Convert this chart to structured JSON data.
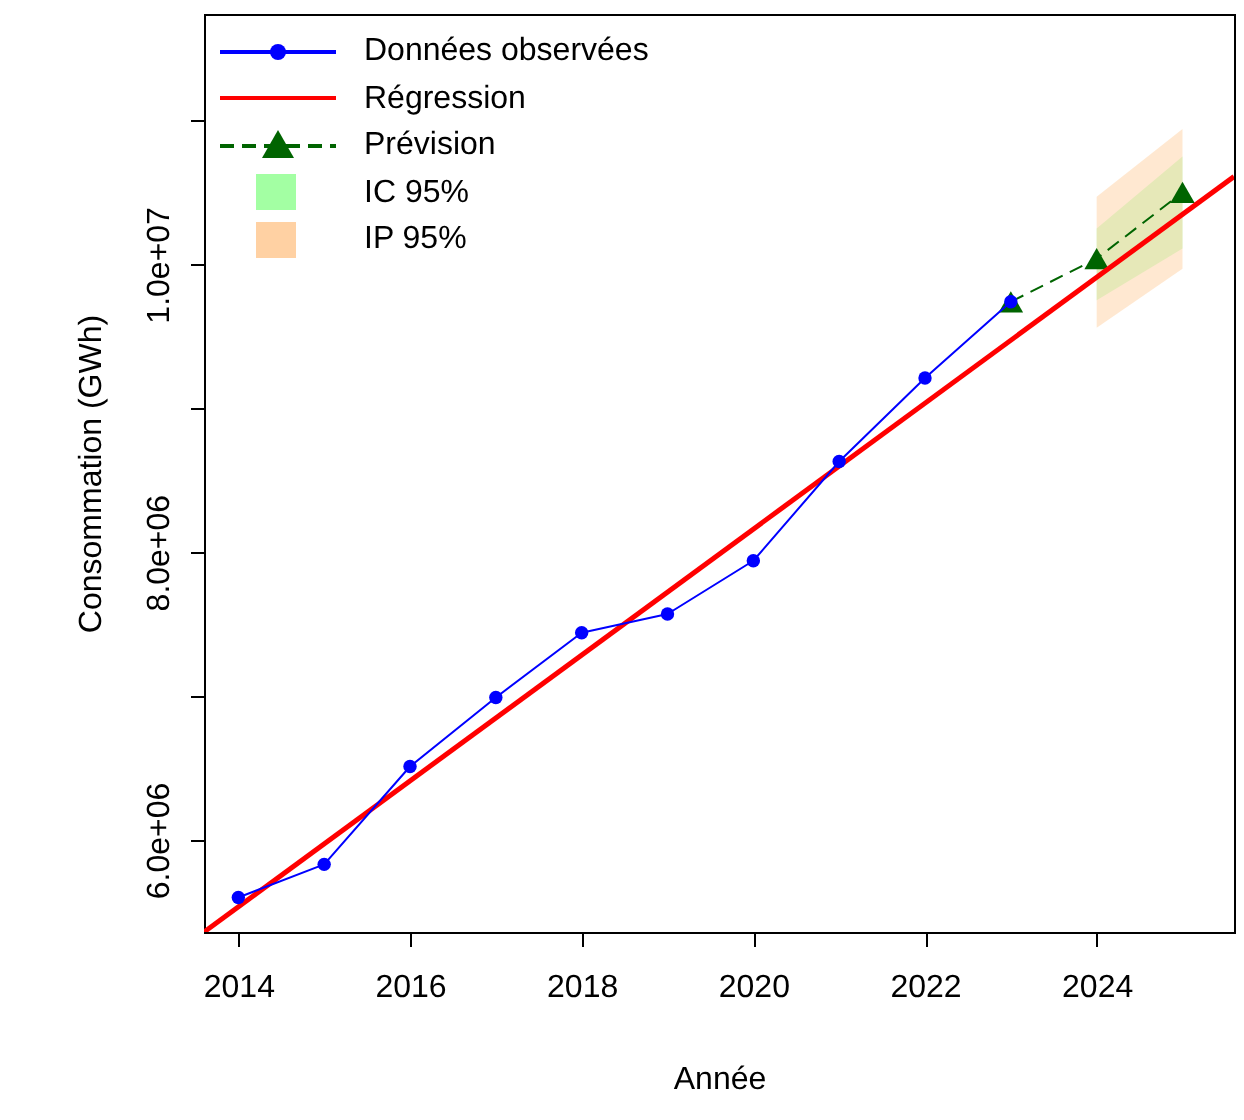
{
  "chart_data": {
    "type": "line",
    "xlabel": "Année",
    "ylabel": "Consommation (GWh)",
    "xlim": [
      2013.6,
      2025.6
    ],
    "ylim": [
      5360000,
      11740000
    ],
    "xticks": [
      2014,
      2016,
      2018,
      2020,
      2022,
      2024
    ],
    "yticks": [
      {
        "value": 6000000,
        "label": "6.0e+06"
      },
      {
        "value": 7000000,
        "label": null
      },
      {
        "value": 8000000,
        "label": "8.0e+06"
      },
      {
        "value": 9000000,
        "label": null
      },
      {
        "value": 10000000,
        "label": "1.0e+07"
      },
      {
        "value": 11000000,
        "label": null
      }
    ],
    "legend": "top left",
    "series": [
      {
        "name": "Données observées",
        "color": "#0000ff",
        "marker": "circle",
        "line_style": "solid",
        "x": [
          2014,
          2015,
          2016,
          2017,
          2018,
          2019,
          2020,
          2021,
          2022,
          2023
        ],
        "values": [
          5600000,
          5830000,
          6510000,
          6990000,
          7440000,
          7570000,
          7940000,
          8630000,
          9210000,
          9740000
        ]
      },
      {
        "name": "Régression",
        "color": "#ff0000",
        "marker": "none",
        "line_style": "solid",
        "x": [
          2013.6,
          2025.6
        ],
        "values": [
          5360000,
          10610000
        ]
      },
      {
        "name": "Prévision",
        "color": "#006400",
        "marker": "triangle",
        "line_style": "dashed",
        "x": [
          2023,
          2024,
          2025
        ],
        "values": [
          9740000,
          10040000,
          10500000
        ]
      },
      {
        "name": "IC 95%",
        "type": "area",
        "color": "#99ff99",
        "x": [
          2024,
          2025
        ],
        "values": [
          null,
          null
        ],
        "lower": [
          9750000,
          10110000
        ],
        "upper": [
          10250000,
          10750000
        ]
      },
      {
        "name": "IP 95%",
        "type": "area",
        "color": "#ffcc99",
        "x": [
          2024,
          2025
        ],
        "values": [
          null,
          null
        ],
        "lower": [
          9560000,
          9970000
        ],
        "upper": [
          10470000,
          10940000
        ]
      }
    ]
  }
}
